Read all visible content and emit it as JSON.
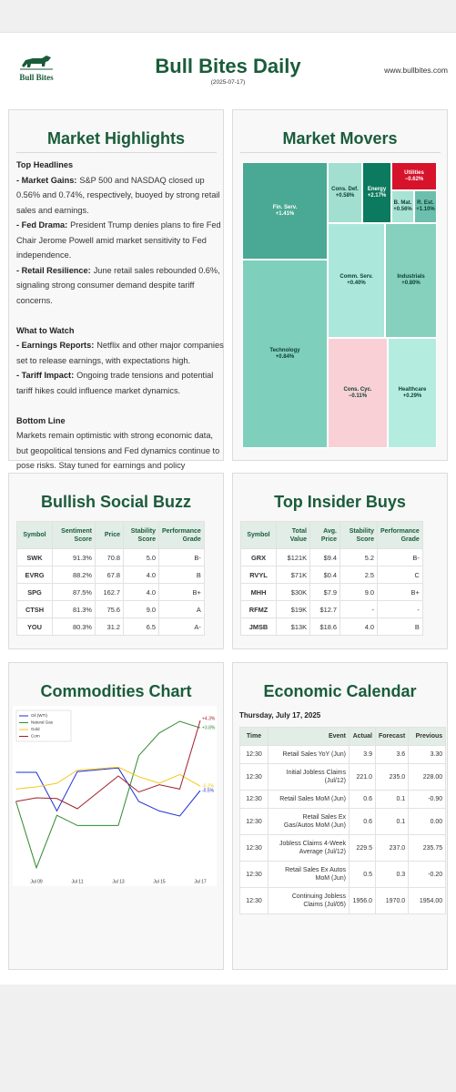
{
  "header": {
    "logo_text": "Bull Bites",
    "title": "Bull Bites Daily",
    "date": "(2025-07-17)",
    "url": "www.bullbites.com"
  },
  "highlights": {
    "title": "Market Highlights",
    "sections": [
      {
        "heading": "Top Headlines",
        "items": [
          {
            "label": "- Market Gains:",
            "text": "S&P 500 and NASDAQ closed up 0.56% and 0.74%, respectively, buoyed by strong retail sales and earnings."
          },
          {
            "label": "- Fed Drama:",
            "text": "President Trump denies plans to fire Fed Chair Jerome Powell amid market sensitivity to Fed independence."
          },
          {
            "label": "- Retail Resilience:",
            "text": "June retail sales rebounded 0.6%, signaling strong consumer demand despite tariff concerns."
          }
        ]
      },
      {
        "heading": "What to Watch",
        "items": [
          {
            "label": "- Earnings Reports:",
            "text": "Netflix and other major companies set to release earnings, with expectations high."
          },
          {
            "label": "- Tariff Impact:",
            "text": "Ongoing trade tensions and potential tariff hikes could influence market dynamics."
          }
        ]
      },
      {
        "heading": "Bottom Line",
        "text": "Markets remain optimistic with strong economic data, but geopolitical tensions and Fed dynamics continue to pose risks. Stay tuned for earnings and policy developments."
      }
    ]
  },
  "market_movers": {
    "title": "Market Movers",
    "items": [
      {
        "name": "Fin. Serv.",
        "change": "+1.41%",
        "color": "#4aa994"
      },
      {
        "name": "Technology",
        "change": "+0.84%",
        "color": "#7fcfbd"
      },
      {
        "name": "Cons. Def.",
        "change": "+0.58%",
        "color": "#a2dfd1"
      },
      {
        "name": "Energy",
        "change": "+2.17%",
        "color": "#0b7a5e"
      },
      {
        "name": "Utilities",
        "change": "−0.62%",
        "color": "#d7122b"
      },
      {
        "name": "B. Mat.",
        "change": "+0.56%",
        "color": "#a8e3d6"
      },
      {
        "name": "R. Est.",
        "change": "+1.10%",
        "color": "#6cbfad"
      },
      {
        "name": "Comm. Serv.",
        "change": "+0.40%",
        "color": "#abe7db"
      },
      {
        "name": "Industrials",
        "change": "+0.80%",
        "color": "#86d0be"
      },
      {
        "name": "Cons. Cyc.",
        "change": "−0.11%",
        "color": "#f8d0d6"
      },
      {
        "name": "Healthcare",
        "change": "+0.29%",
        "color": "#b5ece0"
      }
    ]
  },
  "social_buzz": {
    "title": "Bullish Social Buzz",
    "columns": [
      "Symbol",
      "Sentiment Score",
      "Price",
      "Stability Score",
      "Performance Grade"
    ],
    "rows": [
      [
        "SWK",
        "91.3%",
        "70.8",
        "5.0",
        "B-"
      ],
      [
        "EVRG",
        "88.2%",
        "67.8",
        "4.0",
        "B"
      ],
      [
        "SPG",
        "87.5%",
        "162.7",
        "4.0",
        "B+"
      ],
      [
        "CTSH",
        "81.3%",
        "75.6",
        "9.0",
        "A"
      ],
      [
        "YOU",
        "80.3%",
        "31.2",
        "6.5",
        "A-"
      ]
    ]
  },
  "insider_buys": {
    "title": "Top Insider Buys",
    "columns": [
      "Symbol",
      "Total Value",
      "Avg. Price",
      "Stability Score",
      "Performance Grade"
    ],
    "rows": [
      [
        "GRX",
        "$121K",
        "$9.4",
        "5.2",
        "B-"
      ],
      [
        "RVYL",
        "$71K",
        "$0.4",
        "2.5",
        "C"
      ],
      [
        "MHH",
        "$30K",
        "$7.9",
        "9.0",
        "B+"
      ],
      [
        "RFMZ",
        "$19K",
        "$12.7",
        "-",
        "-"
      ],
      [
        "JMSB",
        "$13K",
        "$18.6",
        "4.0",
        "B"
      ]
    ]
  },
  "commodities_title": "Commodities Chart",
  "chart_data": {
    "type": "line",
    "x": [
      "Jul 08",
      "Jul 09",
      "Jul 10",
      "Jul 11",
      "Jul 13",
      "Jul 14",
      "Jul 15",
      "Jul 16",
      "Jul 17"
    ],
    "xticks": [
      "Jul 09",
      "Jul 11",
      "Jul 13",
      "Jul 15",
      "Jul 17"
    ],
    "ylim": [
      -6.5,
      5
    ],
    "legend": "upper-left",
    "series": [
      {
        "name": "Oil (WTI)",
        "color": "#1f2fd6",
        "values": [
          0.75,
          0.75,
          -1.9,
          0.8,
          1.05,
          -1.25,
          -1.9,
          -2.25,
          -0.5
        ],
        "value_labels": [
          null,
          null,
          null,
          null,
          null,
          null,
          null,
          null,
          "-0.5%"
        ]
      },
      {
        "name": "Natural Gas",
        "color": "#2f8a2f",
        "values": [
          -1.25,
          -5.8,
          -2.2,
          -2.9,
          -2.9,
          1.9,
          3.45,
          4.25,
          3.8
        ],
        "value_labels": [
          null,
          null,
          null,
          null,
          null,
          null,
          null,
          null,
          "+3.8%"
        ]
      },
      {
        "name": "Gold",
        "color": "#f2c81a",
        "values": [
          -0.4,
          -0.25,
          0,
          0.9,
          1.1,
          0.45,
          0,
          0.6,
          -0.2
        ],
        "value_labels": [
          null,
          null,
          null,
          null,
          null,
          null,
          null,
          null,
          "-0.2%"
        ]
      },
      {
        "name": "Corn",
        "color": "#a3202c",
        "values": [
          -1.25,
          -1.0,
          -1.05,
          -1.75,
          0.5,
          -0.6,
          -0.1,
          -0.4,
          4.3
        ],
        "value_labels": [
          null,
          null,
          null,
          null,
          null,
          null,
          null,
          null,
          "+4.3%"
        ]
      }
    ]
  },
  "economic_calendar": {
    "title": "Economic Calendar",
    "date": "Thursday, July 17, 2025",
    "columns": [
      "Time",
      "Event",
      "Actual",
      "Forecast",
      "Previous"
    ],
    "rows": [
      [
        "12:30",
        "Retail Sales YoY (Jun)",
        "3.9",
        "3.6",
        "3.30"
      ],
      [
        "12:30",
        "Initial Jobless Claims (Jul/12)",
        "221.0",
        "235.0",
        "228.00"
      ],
      [
        "12:30",
        "Retail Sales MoM (Jun)",
        "0.6",
        "0.1",
        "-0.90"
      ],
      [
        "12:30",
        "Retail Sales Ex Gas/Autos MoM (Jun)",
        "0.6",
        "0.1",
        "0.00"
      ],
      [
        "12:30",
        "Jobless Claims 4-Week Average (Jul/12)",
        "229.5",
        "237.0",
        "235.75"
      ],
      [
        "12:30",
        "Retail Sales Ex Autos MoM (Jun)",
        "0.5",
        "0.3",
        "-0.20"
      ],
      [
        "12:30",
        "Continuing Jobless Claims (Jul/05)",
        "1956.0",
        "1970.0",
        "1954.00"
      ]
    ]
  }
}
